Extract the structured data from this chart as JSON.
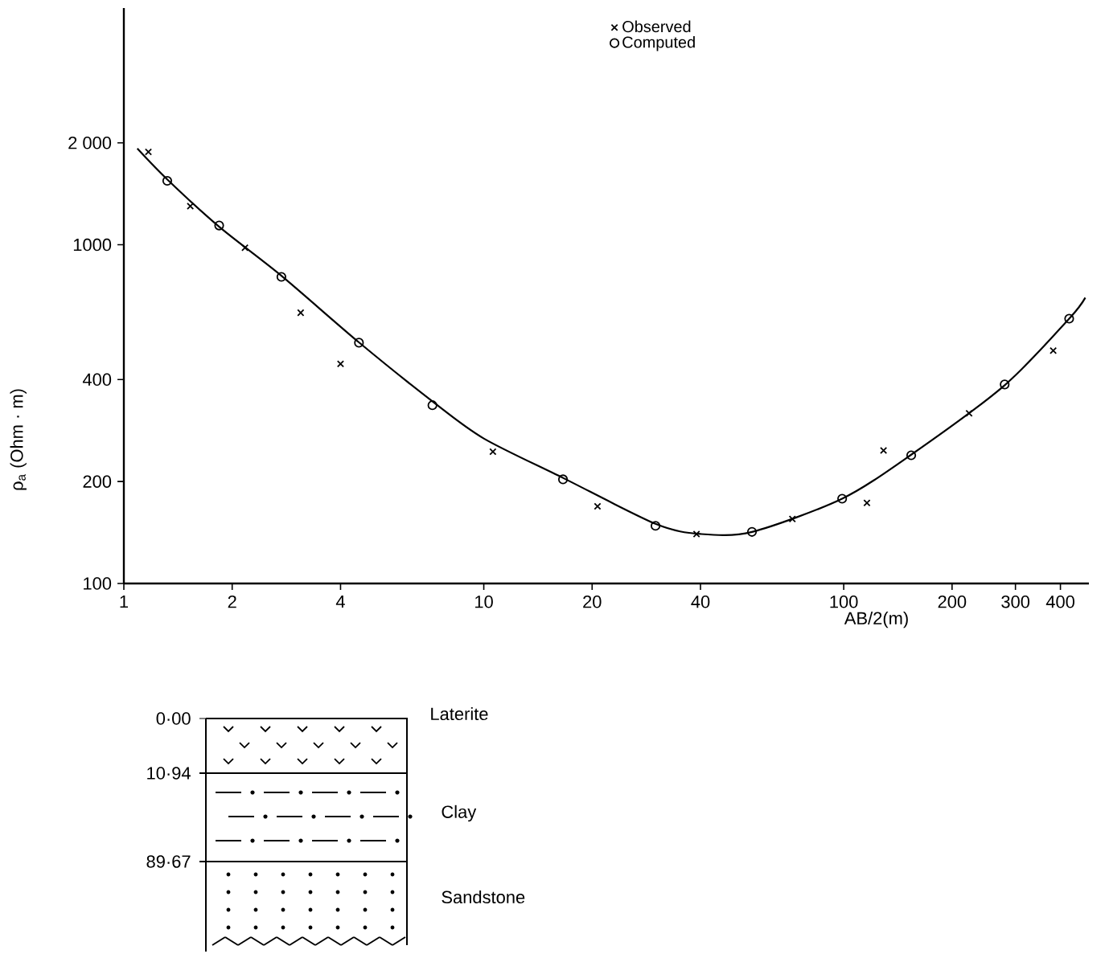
{
  "chart_data": {
    "type": "scatter",
    "xlabel": "AB/2(m)",
    "ylabel": "ρ$_{a}$ (Ohm · m)",
    "log": "xy",
    "xlim": [
      1,
      480
    ],
    "ylim": [
      100,
      5000
    ],
    "xticks": [
      1,
      2,
      4,
      10,
      20,
      40,
      100,
      200,
      300,
      400
    ],
    "yticks": [
      100,
      200,
      400,
      {
        "value": 1000,
        "label": "1000"
      },
      {
        "value": 2000,
        "label": "2 000"
      }
    ],
    "grid": false,
    "legend": "top",
    "series": [
      {
        "name": "Observed",
        "type": "scatter",
        "marker": "cross",
        "color": "#000000",
        "x": [
          1.17,
          1.53,
          2.17,
          3.1,
          4.0,
          10.6,
          20.7,
          39,
          72,
          116,
          129,
          223,
          382
        ],
        "values": [
          1880,
          1300,
          980,
          630,
          445,
          245,
          169,
          140,
          155,
          173,
          247,
          318,
          487
        ]
      },
      {
        "name": "Computed",
        "type": "scatter",
        "marker": "circle",
        "color": "#000000",
        "x": [
          1.32,
          1.84,
          2.74,
          4.5,
          7.2,
          16.6,
          30,
          55.6,
          99,
          154,
          280,
          423
        ],
        "values": [
          1545,
          1140,
          804,
          514,
          336,
          203,
          148,
          142,
          178,
          239,
          387,
          605
        ]
      },
      {
        "type": "line",
        "marker": "none",
        "line_style": "solid",
        "color": "#000000",
        "x": [
          1.09,
          1.32,
          1.84,
          2.74,
          4.5,
          7.2,
          10,
          16.6,
          30,
          40,
          55.6,
          99,
          154,
          280,
          423,
          469
        ],
        "values": [
          1925,
          1560,
          1130,
          810,
          515,
          345,
          268,
          205,
          150,
          140,
          142,
          178,
          240,
          385,
          605,
          698
        ]
      }
    ],
    "annotations": [
      "0·00",
      "10·94",
      "89·67",
      "Laterite",
      "Clay",
      "Sandstone"
    ]
  }
}
